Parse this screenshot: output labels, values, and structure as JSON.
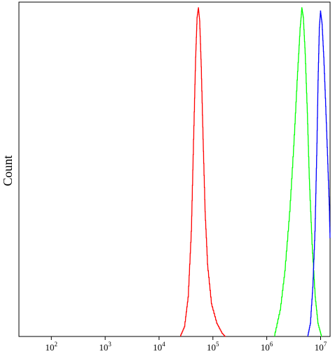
{
  "chart_data": {
    "type": "line",
    "title": "",
    "xlabel": "",
    "ylabel": "Count",
    "x_scale": "log",
    "xlim": [
      25,
      15000000
    ],
    "ylim": [
      0,
      1
    ],
    "x_tick_labels": [
      {
        "value": 100,
        "base": "10",
        "exp": "2"
      },
      {
        "value": 1000,
        "base": "10",
        "exp": "3"
      },
      {
        "value": 10000,
        "base": "10",
        "exp": "4"
      },
      {
        "value": 100000,
        "base": "10",
        "exp": "5"
      },
      {
        "value": 1000000,
        "base": "10",
        "exp": "6"
      },
      {
        "value": 10000000,
        "base": "10",
        "exp": "7"
      }
    ],
    "grid": false,
    "legend": "none",
    "series": [
      {
        "color": "#ff0000",
        "x": [
          25000,
          30000,
          35000,
          40000,
          44000,
          48000,
          51000,
          54000,
          57000,
          61000,
          66000,
          72000,
          80000,
          95000,
          120000,
          150000,
          170000
        ],
        "y": [
          0.0,
          0.03,
          0.12,
          0.32,
          0.6,
          0.85,
          0.97,
          1.0,
          0.96,
          0.82,
          0.6,
          0.38,
          0.22,
          0.1,
          0.04,
          0.01,
          0.0
        ]
      },
      {
        "color": "#00ff00",
        "x": [
          1400000,
          1800000,
          2200000,
          2700000,
          3200000,
          3700000,
          4200000,
          4500000,
          4800000,
          5200000,
          5700000,
          6200000,
          7000000,
          8000000,
          9000000,
          10500000
        ],
        "y": [
          0.0,
          0.08,
          0.2,
          0.38,
          0.58,
          0.78,
          0.94,
          1.0,
          0.97,
          0.86,
          0.68,
          0.48,
          0.28,
          0.12,
          0.04,
          0.0
        ]
      },
      {
        "color": "#0000ff",
        "x": [
          5800000,
          6500000,
          7200000,
          7900000,
          8500000,
          9000000,
          9500000,
          10000000,
          10700000,
          11500000,
          12500000,
          13500000,
          14500000,
          15000000
        ],
        "y": [
          0.0,
          0.04,
          0.15,
          0.32,
          0.55,
          0.78,
          0.94,
          0.99,
          0.95,
          0.85,
          0.7,
          0.55,
          0.4,
          0.3
        ]
      }
    ]
  }
}
